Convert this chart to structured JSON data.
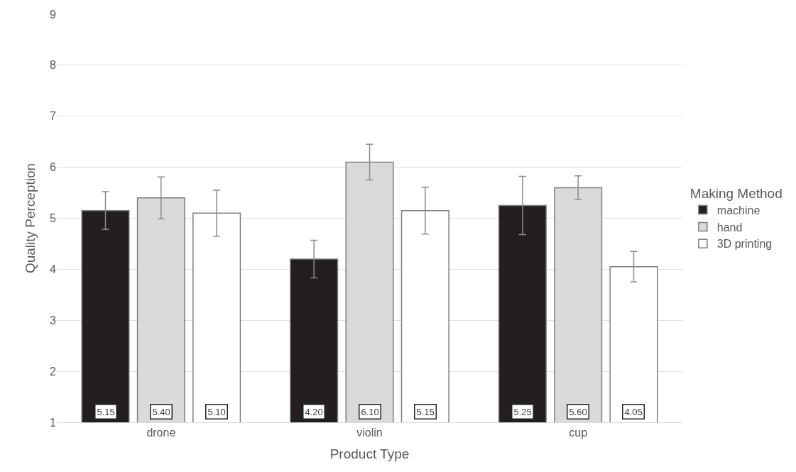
{
  "chart_data": {
    "type": "bar",
    "xlabel": "Product Type",
    "ylabel": "Quality Perception",
    "legend_title": "Making Method",
    "categories": [
      "drone",
      "violin",
      "cup"
    ],
    "series": [
      {
        "name": "machine",
        "color": "#231f20",
        "values": [
          5.15,
          4.2,
          5.25
        ],
        "value_labels": [
          "5.15",
          "4.20",
          "5.25"
        ],
        "errors": [
          0.37,
          0.37,
          0.57
        ]
      },
      {
        "name": "hand",
        "color": "#d9dadc",
        "values": [
          5.4,
          6.1,
          5.6
        ],
        "value_labels": [
          "5.40",
          "6.10",
          "5.60"
        ],
        "errors": [
          0.41,
          0.35,
          0.23
        ]
      },
      {
        "name": "3D printing",
        "color": "#ffffff",
        "values": [
          5.1,
          5.15,
          4.05
        ],
        "value_labels": [
          "5.10",
          "5.15",
          "4.05"
        ],
        "errors": [
          0.45,
          0.46,
          0.3
        ]
      }
    ],
    "ylim": [
      1,
      9
    ],
    "yticks": [
      1,
      2,
      3,
      4,
      5,
      6,
      7,
      8,
      9
    ],
    "grid": "y",
    "legend": "right"
  }
}
